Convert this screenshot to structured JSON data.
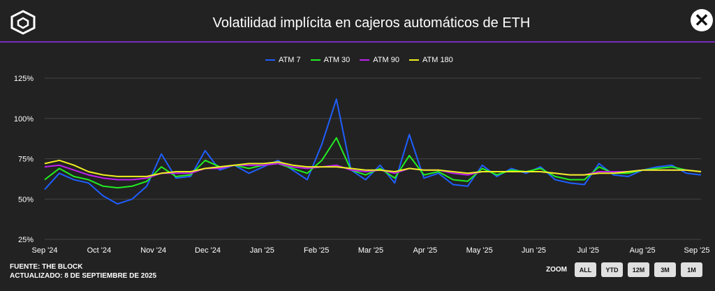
{
  "header": {
    "title": "Volatilidad implícita en cajeros automáticos de ETH",
    "close_label": "✕"
  },
  "source": {
    "line1": "FUENTE: THE BLOCK",
    "line2": "ACTUALIZADO: 8 DE SEPTIEMBRE DE 2025"
  },
  "zoom": {
    "label": "ZOOM",
    "buttons": [
      "ALL",
      "YTD",
      "12M",
      "3M",
      "1M"
    ]
  },
  "colors": {
    "background": "#222222",
    "divider": "#7a2bbd",
    "atm7": "#1f5fff",
    "atm30": "#22ee22",
    "atm90": "#c020f0",
    "atm180": "#f0f020"
  },
  "chart_data": {
    "type": "line",
    "x_labels": [
      "Sep '24",
      "Oct '24",
      "Nov '24",
      "Dec '24",
      "Jan '25",
      "Feb '25",
      "Mar '25",
      "Apr '25",
      "May '25",
      "Jun '25",
      "Jul '25",
      "Aug '25",
      "Sep '25"
    ],
    "y_ticks": [
      "25%",
      "50%",
      "75%",
      "100%",
      "125%"
    ],
    "ylim": [
      25,
      125
    ],
    "grid": "horizontal",
    "legend_position": "top-center",
    "series": [
      {
        "name": "ATM 7",
        "color": "#1f5fff",
        "values": [
          56,
          66,
          62,
          60,
          52,
          47,
          50,
          58,
          78,
          63,
          64,
          80,
          68,
          71,
          66,
          70,
          74,
          68,
          62,
          84,
          112,
          68,
          62,
          71,
          60,
          90,
          63,
          66,
          59,
          58,
          71,
          64,
          69,
          66,
          70,
          62,
          60,
          59,
          72,
          65,
          64,
          68,
          70,
          71,
          66,
          65
        ]
      },
      {
        "name": "ATM 30",
        "color": "#22ee22",
        "values": [
          62,
          69,
          64,
          62,
          58,
          57,
          58,
          61,
          70,
          64,
          65,
          74,
          70,
          71,
          69,
          71,
          72,
          69,
          66,
          74,
          88,
          68,
          65,
          69,
          63,
          77,
          65,
          67,
          62,
          61,
          69,
          65,
          68,
          67,
          69,
          64,
          62,
          62,
          70,
          66,
          66,
          68,
          69,
          70,
          68,
          67
        ]
      },
      {
        "name": "ATM 90",
        "color": "#c020f0",
        "values": [
          70,
          71,
          68,
          65,
          63,
          62,
          62,
          63,
          66,
          66,
          66,
          69,
          69,
          71,
          71,
          71,
          72,
          70,
          69,
          70,
          71,
          68,
          67,
          68,
          66,
          69,
          68,
          68,
          66,
          65,
          67,
          67,
          67,
          67,
          67,
          66,
          65,
          65,
          67,
          67,
          67,
          68,
          68,
          68,
          68,
          67
        ]
      },
      {
        "name": "ATM 180",
        "color": "#f0f020",
        "values": [
          72,
          74,
          71,
          67,
          65,
          64,
          64,
          64,
          66,
          67,
          67,
          69,
          70,
          71,
          72,
          72,
          73,
          71,
          70,
          70,
          70,
          69,
          68,
          68,
          67,
          69,
          68,
          68,
          67,
          66,
          67,
          67,
          67,
          67,
          67,
          66,
          65,
          65,
          66,
          66,
          67,
          68,
          68,
          68,
          68,
          67
        ]
      }
    ]
  }
}
